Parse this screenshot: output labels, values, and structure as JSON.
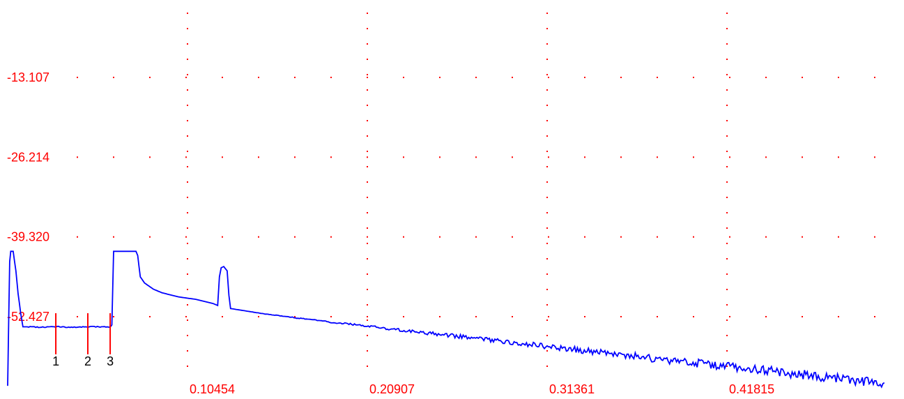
{
  "chart_data": {
    "type": "line",
    "title": "",
    "xlabel": "",
    "ylabel": "",
    "xlim": [
      0.0,
      0.51
    ],
    "ylim": [
      -67.0,
      0.0
    ],
    "grid": true,
    "x_ticks": [
      "0.10454",
      "0.20907",
      "0.31361",
      "0.41815"
    ],
    "y_ticks": [
      "-13.107",
      "-26.214",
      "-39.320",
      "-52.427"
    ],
    "markers": [
      {
        "label": "1",
        "x": 0.0284
      },
      {
        "label": "2",
        "x": 0.047
      },
      {
        "label": "3",
        "x": 0.06
      }
    ],
    "series": [
      {
        "color": "#0000ff",
        "points": [
          [
            0.0004,
            -63.9
          ],
          [
            0.001,
            -53.7
          ],
          [
            0.0016,
            -43.5
          ],
          [
            0.0022,
            -41.8
          ],
          [
            0.0036,
            -41.8
          ],
          [
            0.0052,
            -45.0
          ],
          [
            0.0065,
            -48.8
          ],
          [
            0.008,
            -52.0
          ],
          [
            0.0093,
            -54.2
          ],
          [
            0.011,
            -54.2
          ],
          [
            0.02,
            -54.3
          ],
          [
            0.03,
            -54.2
          ],
          [
            0.04,
            -54.3
          ],
          [
            0.05,
            -54.2
          ],
          [
            0.06,
            -54.2
          ],
          [
            0.061,
            -53.9
          ],
          [
            0.062,
            -41.8
          ],
          [
            0.075,
            -41.8
          ],
          [
            0.076,
            -42.5
          ],
          [
            0.0775,
            -46.0
          ],
          [
            0.08,
            -47.0
          ],
          [
            0.085,
            -48.0
          ],
          [
            0.09,
            -48.6
          ],
          [
            0.1,
            -49.3
          ],
          [
            0.11,
            -49.7
          ],
          [
            0.12,
            -50.4
          ],
          [
            0.1225,
            -50.7
          ],
          [
            0.1235,
            -46.0
          ],
          [
            0.1245,
            -44.5
          ],
          [
            0.126,
            -44.3
          ],
          [
            0.128,
            -45.0
          ],
          [
            0.129,
            -49.0
          ],
          [
            0.13,
            -51.2
          ],
          [
            0.15,
            -52.1
          ],
          [
            0.17,
            -52.8
          ],
          [
            0.19,
            -53.5
          ],
          [
            0.21,
            -54.1
          ],
          [
            0.23,
            -54.8
          ],
          [
            0.25,
            -55.4
          ],
          [
            0.27,
            -56.0
          ],
          [
            0.29,
            -56.7
          ],
          [
            0.31,
            -57.3
          ],
          [
            0.33,
            -57.9
          ],
          [
            0.35,
            -58.6
          ],
          [
            0.37,
            -59.2
          ],
          [
            0.39,
            -59.9
          ],
          [
            0.41,
            -60.4
          ],
          [
            0.43,
            -61.0
          ],
          [
            0.45,
            -61.6
          ],
          [
            0.47,
            -62.3
          ],
          [
            0.49,
            -62.9
          ],
          [
            0.51,
            -63.4
          ]
        ]
      }
    ]
  }
}
